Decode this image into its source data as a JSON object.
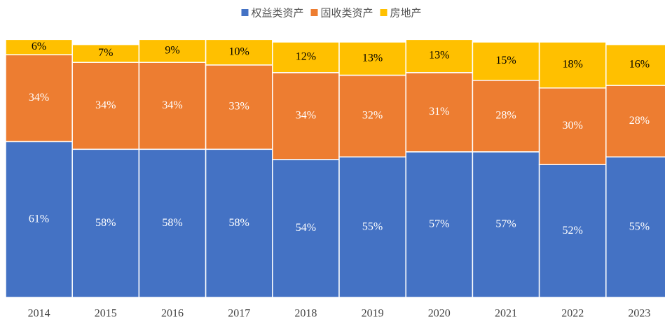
{
  "chart_data": {
    "type": "stacked_bar",
    "categories": [
      "2014",
      "2015",
      "2016",
      "2017",
      "2018",
      "2019",
      "2020",
      "2021",
      "2022",
      "2023"
    ],
    "series": [
      {
        "name": "权益类资产",
        "color": "#4472c4",
        "values": [
          61,
          58,
          58,
          58,
          54,
          55,
          57,
          57,
          52,
          55
        ],
        "value_labels": [
          "61%",
          "58%",
          "58%",
          "58%",
          "54%",
          "55%",
          "57%",
          "57%",
          "52%",
          "55%"
        ]
      },
      {
        "name": "固收类资产",
        "color": "#ed7d31",
        "values": [
          34,
          34,
          34,
          33,
          34,
          32,
          31,
          28,
          30,
          28
        ],
        "value_labels": [
          "34%",
          "34%",
          "34%",
          "33%",
          "34%",
          "32%",
          "31%",
          "28%",
          "30%",
          "28%"
        ]
      },
      {
        "name": "房地产",
        "color": "#ffc000",
        "values": [
          6,
          7,
          9,
          10,
          12,
          13,
          13,
          15,
          18,
          16
        ],
        "value_labels": [
          "6%",
          "7%",
          "9%",
          "10%",
          "12%",
          "13%",
          "13%",
          "15%",
          "18%",
          "16%"
        ]
      }
    ],
    "ylim": [
      0,
      100
    ],
    "legend": "top"
  }
}
